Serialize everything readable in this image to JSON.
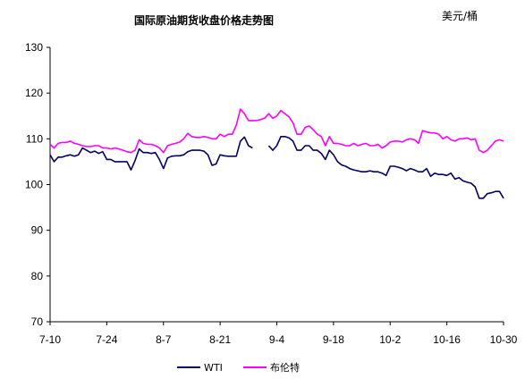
{
  "chart_data": {
    "type": "line",
    "title": "国际原油期货收盘价格走势图",
    "unit": "美元/桶",
    "ylim": [
      70,
      130
    ],
    "yticks": [
      70,
      80,
      90,
      100,
      110,
      120,
      130
    ],
    "xlim": [
      "7-10",
      "10-30"
    ],
    "xticks": [
      "7-10",
      "7-24",
      "8-7",
      "8-21",
      "9-4",
      "9-18",
      "10-2",
      "10-16",
      "10-30"
    ],
    "grid": false,
    "legend_position": "bottom",
    "series": [
      {
        "name": "WTI",
        "color": "#000066",
        "points": [
          [
            "7-10",
            106.5
          ],
          [
            "7-11",
            105.0
          ],
          [
            "7-12",
            106.0
          ],
          [
            "7-13",
            106.0
          ],
          [
            "7-14",
            106.3
          ],
          [
            "7-15",
            106.5
          ],
          [
            "7-16",
            106.2
          ],
          [
            "7-17",
            106.5
          ],
          [
            "7-18",
            108.0
          ],
          [
            "7-19",
            107.5
          ],
          [
            "7-20",
            107.0
          ],
          [
            "7-21",
            107.3
          ],
          [
            "7-22",
            106.8
          ],
          [
            "7-23",
            107.2
          ],
          [
            "7-24",
            105.5
          ],
          [
            "7-25",
            105.5
          ],
          [
            "7-26",
            105.0
          ],
          [
            "7-27",
            105.0
          ],
          [
            "7-28",
            105.0
          ],
          [
            "7-29",
            105.0
          ],
          [
            "7-30",
            103.2
          ],
          [
            "7-31",
            105.3
          ],
          [
            "8-1",
            107.8
          ],
          [
            "8-2",
            107.0
          ],
          [
            "8-3",
            107.0
          ],
          [
            "8-4",
            106.8
          ],
          [
            "8-5",
            107.0
          ],
          [
            "8-6",
            105.5
          ],
          [
            "8-7",
            103.5
          ],
          [
            "8-8",
            105.8
          ],
          [
            "8-9",
            106.2
          ],
          [
            "8-10",
            106.3
          ],
          [
            "8-11",
            106.3
          ],
          [
            "8-12",
            106.5
          ],
          [
            "8-13",
            107.2
          ],
          [
            "8-14",
            107.5
          ],
          [
            "8-15",
            107.5
          ],
          [
            "8-16",
            107.5
          ],
          [
            "8-17",
            107.3
          ],
          [
            "8-18",
            106.5
          ],
          [
            "8-19",
            104.2
          ],
          [
            "8-20",
            104.5
          ],
          [
            "8-21",
            106.5
          ],
          [
            "8-22",
            106.3
          ],
          [
            "8-23",
            106.2
          ],
          [
            "8-24",
            106.2
          ],
          [
            "8-25",
            106.2
          ],
          [
            "8-26",
            109.5
          ],
          [
            "8-27",
            110.4
          ],
          [
            "8-28",
            108.5
          ],
          [
            "8-29",
            108.0
          ],
          [
            "9-2",
            108.5
          ],
          [
            "9-3",
            107.5
          ],
          [
            "9-4",
            108.5
          ],
          [
            "9-5",
            110.5
          ],
          [
            "9-6",
            110.5
          ],
          [
            "9-7",
            110.2
          ],
          [
            "9-8",
            109.5
          ],
          [
            "9-9",
            107.5
          ],
          [
            "9-10",
            107.5
          ],
          [
            "9-11",
            108.5
          ],
          [
            "9-12",
            108.5
          ],
          [
            "9-13",
            107.5
          ],
          [
            "9-14",
            107.5
          ],
          [
            "9-15",
            106.8
          ],
          [
            "9-16",
            105.5
          ],
          [
            "9-17",
            107.5
          ],
          [
            "9-18",
            106.5
          ],
          [
            "9-19",
            105.0
          ],
          [
            "9-20",
            104.3
          ],
          [
            "9-21",
            104.0
          ],
          [
            "9-22",
            103.5
          ],
          [
            "9-23",
            103.2
          ],
          [
            "9-24",
            103.0
          ],
          [
            "9-25",
            102.8
          ],
          [
            "9-26",
            102.8
          ],
          [
            "9-27",
            103.0
          ],
          [
            "9-28",
            102.8
          ],
          [
            "9-29",
            102.8
          ],
          [
            "9-30",
            102.5
          ],
          [
            "10-1",
            102.0
          ],
          [
            "10-2",
            104.0
          ],
          [
            "10-3",
            104.0
          ],
          [
            "10-4",
            103.8
          ],
          [
            "10-5",
            103.5
          ],
          [
            "10-6",
            103.0
          ],
          [
            "10-7",
            103.5
          ],
          [
            "10-8",
            103.2
          ],
          [
            "10-9",
            102.8
          ],
          [
            "10-10",
            102.8
          ],
          [
            "10-11",
            103.5
          ],
          [
            "10-12",
            101.8
          ],
          [
            "10-13",
            102.5
          ],
          [
            "10-14",
            102.2
          ],
          [
            "10-15",
            102.2
          ],
          [
            "10-16",
            102.0
          ],
          [
            "10-17",
            102.5
          ],
          [
            "10-18",
            101.2
          ],
          [
            "10-19",
            101.5
          ],
          [
            "10-20",
            100.8
          ],
          [
            "10-21",
            100.5
          ],
          [
            "10-22",
            100.3
          ],
          [
            "10-23",
            99.5
          ],
          [
            "10-24",
            97.0
          ],
          [
            "10-25",
            97.0
          ],
          [
            "10-26",
            98.0
          ],
          [
            "10-27",
            98.2
          ],
          [
            "10-28",
            98.5
          ],
          [
            "10-29",
            98.5
          ],
          [
            "10-30",
            97.0
          ]
        ]
      },
      {
        "name": "布伦特",
        "color": "#ff00ff",
        "points": [
          [
            "7-10",
            108.8
          ],
          [
            "7-11",
            108.0
          ],
          [
            "7-12",
            109.0
          ],
          [
            "7-13",
            109.2
          ],
          [
            "7-14",
            109.2
          ],
          [
            "7-15",
            109.5
          ],
          [
            "7-16",
            109.0
          ],
          [
            "7-17",
            108.8
          ],
          [
            "7-18",
            108.5
          ],
          [
            "7-19",
            108.3
          ],
          [
            "7-20",
            108.3
          ],
          [
            "7-21",
            108.5
          ],
          [
            "7-22",
            108.5
          ],
          [
            "7-23",
            108.0
          ],
          [
            "7-24",
            108.0
          ],
          [
            "7-25",
            107.8
          ],
          [
            "7-26",
            108.0
          ],
          [
            "7-27",
            107.8
          ],
          [
            "7-28",
            107.5
          ],
          [
            "7-29",
            107.2
          ],
          [
            "7-30",
            107.0
          ],
          [
            "7-31",
            107.5
          ],
          [
            "8-1",
            109.8
          ],
          [
            "8-2",
            109.0
          ],
          [
            "8-3",
            108.8
          ],
          [
            "8-4",
            108.8
          ],
          [
            "8-5",
            108.5
          ],
          [
            "8-6",
            108.0
          ],
          [
            "8-7",
            107.0
          ],
          [
            "8-8",
            108.5
          ],
          [
            "8-9",
            108.8
          ],
          [
            "8-10",
            109.0
          ],
          [
            "8-11",
            109.3
          ],
          [
            "8-12",
            110.0
          ],
          [
            "8-13",
            111.2
          ],
          [
            "8-14",
            110.5
          ],
          [
            "8-15",
            110.3
          ],
          [
            "8-16",
            110.3
          ],
          [
            "8-17",
            110.5
          ],
          [
            "8-18",
            110.3
          ],
          [
            "8-19",
            110.0
          ],
          [
            "8-20",
            110.0
          ],
          [
            "8-21",
            111.0
          ],
          [
            "8-22",
            110.5
          ],
          [
            "8-23",
            111.0
          ],
          [
            "8-24",
            111.0
          ],
          [
            "8-25",
            113.0
          ],
          [
            "8-26",
            116.5
          ],
          [
            "8-27",
            115.5
          ],
          [
            "8-28",
            114.0
          ],
          [
            "8-29",
            114.0
          ],
          [
            "8-30",
            114.0
          ],
          [
            "8-31",
            114.2
          ],
          [
            "9-1",
            114.5
          ],
          [
            "9-2",
            115.5
          ],
          [
            "9-3",
            114.5
          ],
          [
            "9-4",
            115.0
          ],
          [
            "9-5",
            116.2
          ],
          [
            "9-6",
            115.5
          ],
          [
            "9-7",
            114.8
          ],
          [
            "9-8",
            113.5
          ],
          [
            "9-9",
            111.0
          ],
          [
            "9-10",
            111.0
          ],
          [
            "9-11",
            112.5
          ],
          [
            "9-12",
            112.8
          ],
          [
            "9-13",
            112.0
          ],
          [
            "9-14",
            111.0
          ],
          [
            "9-15",
            110.5
          ],
          [
            "9-16",
            108.5
          ],
          [
            "9-17",
            110.5
          ],
          [
            "9-18",
            109.0
          ],
          [
            "9-19",
            109.0
          ],
          [
            "9-20",
            108.8
          ],
          [
            "9-21",
            108.5
          ],
          [
            "9-22",
            108.5
          ],
          [
            "9-23",
            109.0
          ],
          [
            "9-24",
            108.5
          ],
          [
            "9-25",
            108.8
          ],
          [
            "9-26",
            109.0
          ],
          [
            "9-27",
            108.5
          ],
          [
            "9-28",
            108.5
          ],
          [
            "9-29",
            108.8
          ],
          [
            "9-30",
            108.0
          ],
          [
            "10-1",
            108.5
          ],
          [
            "10-2",
            109.3
          ],
          [
            "10-3",
            109.5
          ],
          [
            "10-4",
            109.5
          ],
          [
            "10-5",
            109.3
          ],
          [
            "10-6",
            109.8
          ],
          [
            "10-7",
            110.0
          ],
          [
            "10-8",
            109.8
          ],
          [
            "10-9",
            109.0
          ],
          [
            "10-10",
            111.8
          ],
          [
            "10-11",
            111.5
          ],
          [
            "10-12",
            111.3
          ],
          [
            "10-13",
            111.3
          ],
          [
            "10-14",
            111.0
          ],
          [
            "10-15",
            110.0
          ],
          [
            "10-16",
            110.5
          ],
          [
            "10-17",
            109.8
          ],
          [
            "10-18",
            109.5
          ],
          [
            "10-19",
            110.0
          ],
          [
            "10-20",
            110.0
          ],
          [
            "10-21",
            110.2
          ],
          [
            "10-22",
            109.8
          ],
          [
            "10-23",
            110.0
          ],
          [
            "10-24",
            107.5
          ],
          [
            "10-25",
            107.0
          ],
          [
            "10-26",
            107.5
          ],
          [
            "10-27",
            108.5
          ],
          [
            "10-28",
            109.5
          ],
          [
            "10-29",
            109.8
          ],
          [
            "10-30",
            109.5
          ]
        ]
      }
    ]
  }
}
